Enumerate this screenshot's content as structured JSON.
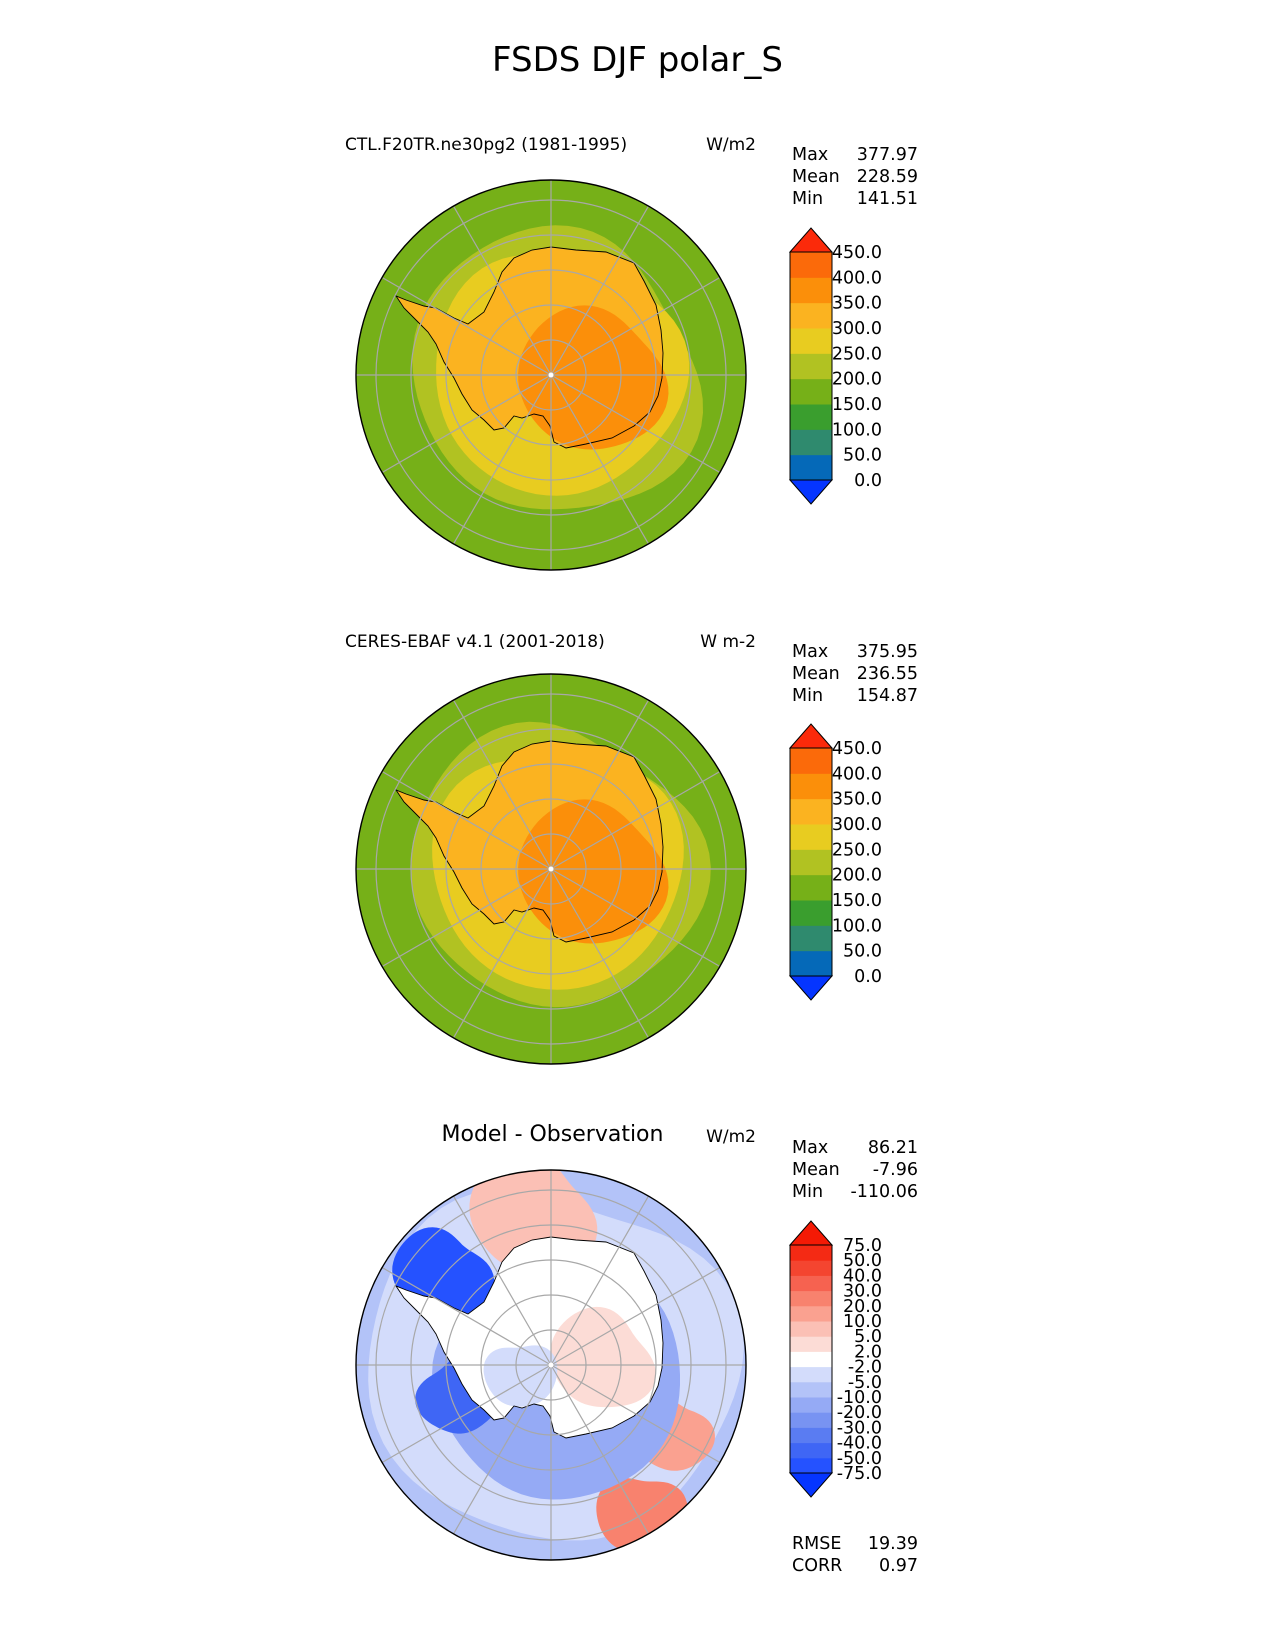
{
  "figure_title": "FSDS DJF polar_S",
  "panels": [
    {
      "title": "CTL.F20TR.ne30pg2 (1981-1995)",
      "units": "W/m2",
      "stats": {
        "max_label": "Max",
        "max": "377.97",
        "mean_label": "Mean",
        "mean": "228.59",
        "min_label": "Min",
        "min": "141.51"
      }
    },
    {
      "title": "CERES-EBAF v4.1 (2001-2018)",
      "units": "W m-2",
      "stats": {
        "max_label": "Max",
        "max": "375.95",
        "mean_label": "Mean",
        "mean": "236.55",
        "min_label": "Min",
        "min": "154.87"
      }
    },
    {
      "title": "Model - Observation",
      "units": "W/m2",
      "stats": {
        "max_label": "Max",
        "max": "86.21",
        "mean_label": "Mean",
        "mean": "-7.96",
        "min_label": "Min",
        "min": "-110.06"
      },
      "metrics": {
        "rmse_label": "RMSE",
        "rmse": "19.39",
        "corr_label": "CORR",
        "corr": "0.97"
      }
    }
  ],
  "chart_data": [
    {
      "type": "heatmap",
      "projection": "south-polar-stereographic",
      "title": "CTL.F20TR.ne30pg2 (1981-1995)",
      "units": "W/m2",
      "variable": "FSDS",
      "season": "DJF",
      "region": "polar_S",
      "colorbar": {
        "levels": [
          "0.0",
          "50.0",
          "100.0",
          "150.0",
          "200.0",
          "250.0",
          "300.0",
          "350.0",
          "400.0",
          "450.0"
        ],
        "colors": [
          "#0535ff",
          "#0569b8",
          "#2f8a6e",
          "#3a9e2e",
          "#76b018",
          "#b1c222",
          "#e8cc20",
          "#fbb320",
          "#fb8f0a",
          "#fb6a0a",
          "#fb2a0a"
        ],
        "extend": "both"
      },
      "field": {
        "ocean_value": 175,
        "coastal_band_value": 225,
        "shelf_value": 275,
        "interior_value": 325,
        "plateau_value": 362
      }
    },
    {
      "type": "heatmap",
      "projection": "south-polar-stereographic",
      "title": "CERES-EBAF v4.1 (2001-2018)",
      "units": "W m-2",
      "variable": "FSDS",
      "season": "DJF",
      "region": "polar_S",
      "colorbar": {
        "levels": [
          "0.0",
          "50.0",
          "100.0",
          "150.0",
          "200.0",
          "250.0",
          "300.0",
          "350.0",
          "400.0",
          "450.0"
        ],
        "colors": [
          "#0535ff",
          "#0569b8",
          "#2f8a6e",
          "#3a9e2e",
          "#76b018",
          "#b1c222",
          "#e8cc20",
          "#fbb320",
          "#fb8f0a",
          "#fb6a0a",
          "#fb2a0a"
        ],
        "extend": "both"
      },
      "field": {
        "ocean_value": 175,
        "coastal_band_value": 225,
        "shelf_value": 275,
        "interior_value": 325,
        "plateau_value": 365
      }
    },
    {
      "type": "heatmap",
      "projection": "south-polar-stereographic",
      "title": "Model - Observation",
      "units": "W/m2",
      "colorbar": {
        "levels": [
          "-75.0",
          "-50.0",
          "-40.0",
          "-30.0",
          "-20.0",
          "-10.0",
          "-5.0",
          "-2.0",
          "2.0",
          "5.0",
          "10.0",
          "20.0",
          "30.0",
          "40.0",
          "50.0",
          "75.0"
        ],
        "colors": [
          "#0535ff",
          "#2552ff",
          "#3f66f5",
          "#5a7cf2",
          "#7893f2",
          "#95aaf5",
          "#b3c3f8",
          "#d3dcfb",
          "#ffffff",
          "#fcdcd6",
          "#fbc0b5",
          "#faa190",
          "#f8826e",
          "#f66250",
          "#f44530",
          "#f42a14",
          "#f41a05"
        ],
        "extend": "both"
      },
      "metrics": {
        "rmse": 19.39,
        "corr": 0.97
      }
    }
  ]
}
